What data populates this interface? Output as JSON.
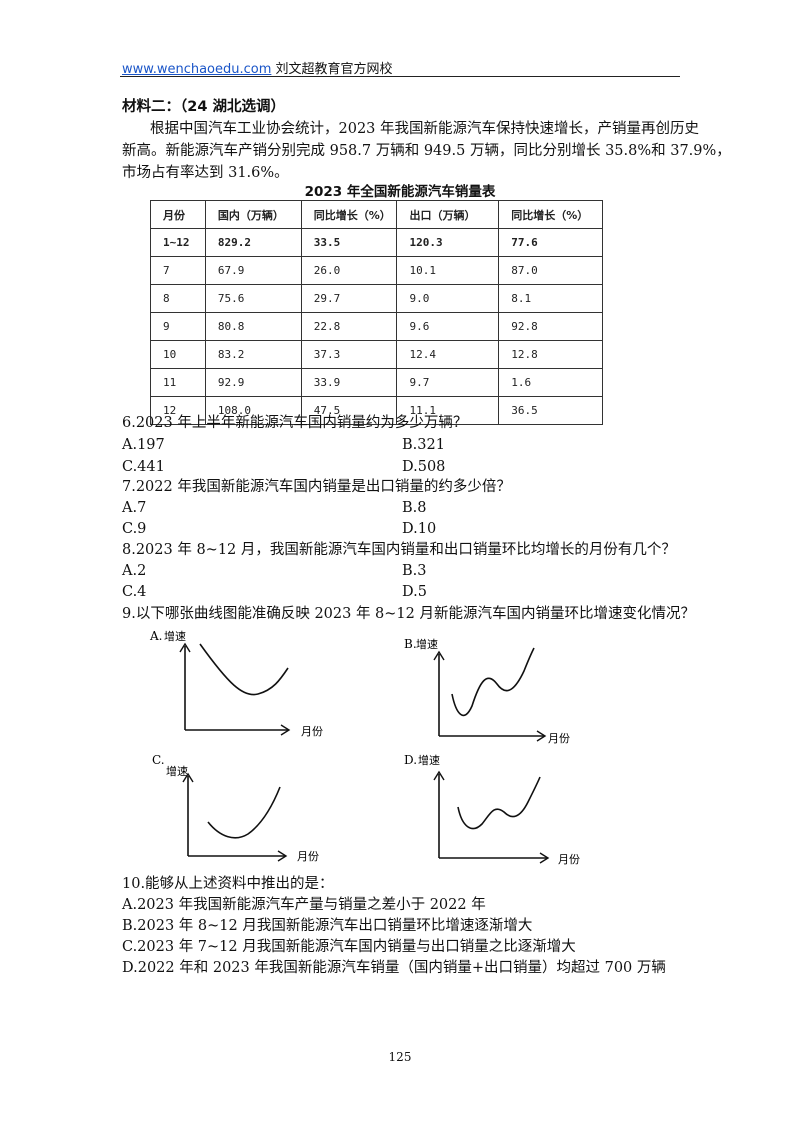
{
  "header": {
    "site": "www.wenchaoedu.com",
    "school": " 刘文超教育官方网校"
  },
  "material": {
    "heading": "材料二：（24 湖北选调）",
    "lines": [
      "根据中国汽车工业协会统计，2023 年我国新能源汽车保持快速增长，产销量再创历史",
      "新高。新能源汽车产销分别完成 958.7 万辆和 949.5 万辆，同比分别增长 35.8%和 37.9%，",
      "市场占有率达到 31.6%。"
    ]
  },
  "table": {
    "title": "2023 年全国新能源汽车销量表",
    "headers": [
      "月份",
      "国内（万辆）",
      "同比增长（%）",
      "出口（万辆）",
      "同比增长（%）"
    ],
    "rows": [
      [
        "1~12",
        "829.2",
        "33.5",
        "120.3",
        "77.6"
      ],
      [
        "7",
        "67.9",
        "26.0",
        "10.1",
        "87.0"
      ],
      [
        "8",
        "75.6",
        "29.7",
        "9.0",
        "8.1"
      ],
      [
        "9",
        "80.8",
        "22.8",
        "9.6",
        "92.8"
      ],
      [
        "10",
        "83.2",
        "37.3",
        "12.4",
        "12.8"
      ],
      [
        "11",
        "92.9",
        "33.9",
        "9.7",
        "1.6"
      ],
      [
        "12",
        "108.0",
        "47.5",
        "11.1",
        "36.5"
      ]
    ]
  },
  "questions": [
    {
      "stem": "6.2023 年上半年新能源汽车国内销量约为多少万辆？",
      "options": [
        "A.197",
        "B.321",
        "C.441",
        "D.508"
      ]
    },
    {
      "stem": "7.2022 年我国新能源汽车国内销量是出口销量的约多少倍？",
      "options": [
        "A.7",
        "B.8",
        "C.9",
        "D.10"
      ]
    },
    {
      "stem": "8.2023 年 8~12 月，我国新能源汽车国内销量和出口销量环比均增长的月份有几个？",
      "options": [
        "A.2",
        "B.3",
        "C.4",
        "D.5"
      ]
    },
    {
      "stem": "9.以下哪张曲线图能准确反映 2023 年 8~12 月新能源汽车国内销量环比增速变化情况？"
    }
  ],
  "graphs": {
    "A": {
      "letter": "A.",
      "ylabel": "增速",
      "xlabel": "月份"
    },
    "B": {
      "letter": "B.",
      "ylabel": "增速",
      "xlabel": "月份"
    },
    "C": {
      "letter": "C.",
      "ylabel": "增速",
      "xlabel": "月份"
    },
    "D": {
      "letter": "D.",
      "ylabel": "增速",
      "xlabel": "月份"
    }
  },
  "q10": {
    "stem": "10.能够从上述资料中推出的是：",
    "options": [
      "A.2023 年我国新能源汽车产量与销量之差小于 2022 年",
      "B.2023 年 8~12 月我国新能源汽车出口销量环比增速逐渐增大",
      "C.2023 年 7~12 月我国新能源汽车国内销量与出口销量之比逐渐增大",
      "D.2022 年和 2023 年我国新能源汽车销量（国内销量+出口销量）均超过 700 万辆"
    ]
  },
  "page_number": "125"
}
